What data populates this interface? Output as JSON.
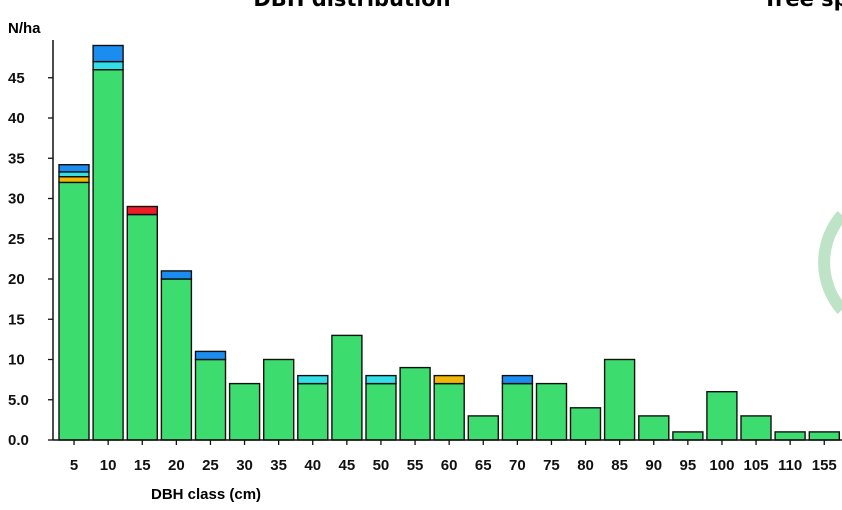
{
  "chart_data": {
    "type": "bar",
    "stacked": true,
    "title": "DBH distribution",
    "second_title": "Tree sp",
    "ylabel": "N/ha",
    "xlabel": "DBH class (cm)",
    "ylim": [
      0,
      49
    ],
    "yticks": [
      "0.0",
      "5.0",
      "10",
      "15",
      "20",
      "25",
      "30",
      "35",
      "40",
      "45"
    ],
    "categories": [
      "5",
      "10",
      "15",
      "20",
      "25",
      "30",
      "35",
      "40",
      "45",
      "50",
      "55",
      "60",
      "65",
      "70",
      "75",
      "80",
      "85",
      "90",
      "95",
      "100",
      "105",
      "110",
      "155"
    ],
    "colors": {
      "green": "#3ddc6e",
      "yellow": "#f2b705",
      "cyan": "#32dfe8",
      "blue": "#1c8df0",
      "red": "#ee1c24",
      "decoration": "#bfe3c6"
    },
    "series": [
      {
        "color": "green",
        "values": [
          32,
          46,
          28,
          20,
          10,
          7,
          10,
          7,
          13,
          7,
          9,
          7,
          3,
          7,
          7,
          4,
          10,
          3,
          1,
          6,
          3,
          1,
          1
        ]
      },
      {
        "color": "yellow",
        "values": [
          0.7,
          0,
          0,
          0,
          0,
          0,
          0,
          0,
          0,
          0,
          0,
          1,
          0,
          0,
          0,
          0,
          0,
          0,
          0,
          0,
          0,
          0,
          0
        ]
      },
      {
        "color": "cyan",
        "values": [
          0.6,
          1,
          0,
          0,
          0,
          0,
          0,
          1,
          0,
          1,
          0,
          0,
          0,
          0,
          0,
          0,
          0,
          0,
          0,
          0,
          0,
          0,
          0
        ]
      },
      {
        "color": "blue",
        "values": [
          0.9,
          2,
          0,
          1,
          1,
          0,
          0,
          0,
          0,
          0,
          0,
          0,
          0,
          1,
          0,
          0,
          0,
          0,
          0,
          0,
          0,
          0,
          0
        ]
      },
      {
        "color": "red",
        "values": [
          0,
          0,
          1,
          0,
          0,
          0,
          0,
          0,
          0,
          0,
          0,
          0,
          0,
          0,
          0,
          0,
          0,
          0,
          0,
          0,
          0,
          0,
          0
        ]
      }
    ],
    "grid": false,
    "legend": "none"
  }
}
